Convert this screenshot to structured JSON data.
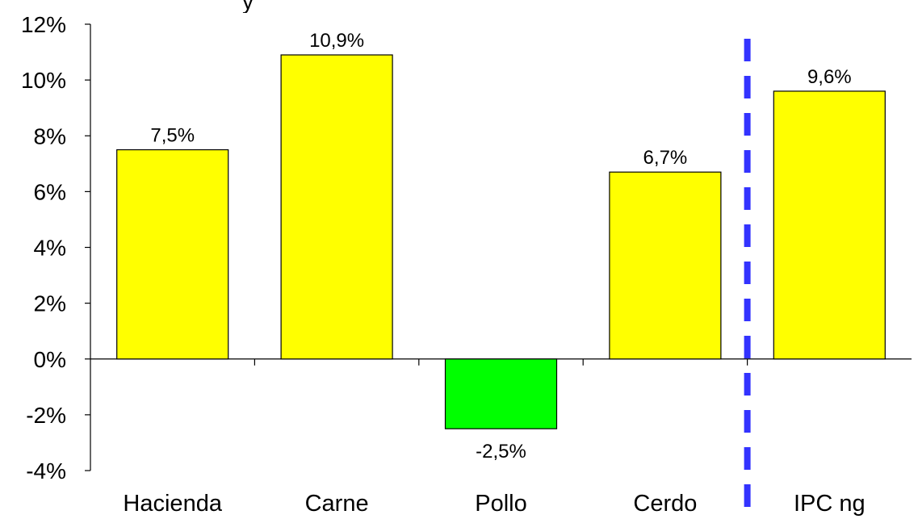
{
  "chart_data": {
    "type": "bar",
    "title_fragment": "y",
    "categories": [
      "Hacienda",
      "Carne",
      "Pollo",
      "Cerdo",
      "IPC ng"
    ],
    "values": [
      7.5,
      10.9,
      -2.5,
      6.7,
      9.6
    ],
    "data_labels": [
      "7,5%",
      "10,9%",
      "-2,5%",
      "6,7%",
      "9,6%"
    ],
    "y_ticks": [
      12,
      10,
      8,
      6,
      4,
      2,
      0,
      -2,
      -4
    ],
    "y_tick_labels": [
      "12%",
      "10%",
      "8%",
      "6%",
      "4%",
      "2%",
      "0%",
      "-2%",
      "-4%"
    ],
    "ylim": [
      -4,
      12
    ],
    "grid": false,
    "legend": "none",
    "colors": {
      "positive_bar": "#ffff00",
      "negative_bar": "#00ff00",
      "bar_outline": "#000000",
      "separator_line": "#3333ff",
      "axis": "#000000"
    },
    "annotations": [
      {
        "type": "vertical-dashed-separator",
        "between": [
          "Cerdo",
          "IPC ng"
        ]
      }
    ]
  }
}
